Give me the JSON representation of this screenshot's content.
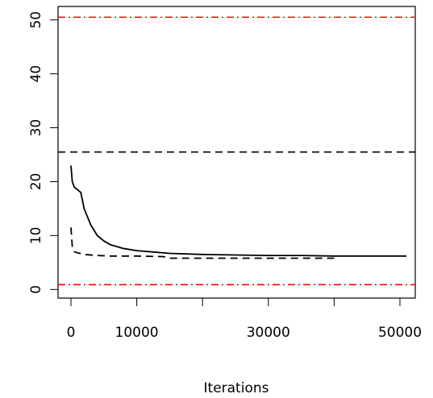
{
  "chart_data": {
    "type": "line",
    "x_label": "Iterations",
    "xlim": [
      -1960,
      52330
    ],
    "ylim": [
      -1.6,
      52.5
    ],
    "xticks": [
      0,
      10000,
      {
        "value": 20000,
        "label": null
      },
      30000,
      {
        "value": 40000,
        "label": null
      },
      50000
    ],
    "yticks": [
      0,
      10,
      20,
      30,
      40,
      50
    ],
    "hlines": [
      {
        "value": 50.5,
        "color": "#ff0000",
        "linestyle": "dashdot"
      },
      {
        "value": 25.5,
        "color": "#000000",
        "linestyle": "dashed"
      },
      {
        "value": 0.9,
        "color": "#ff0000",
        "linestyle": "dashdot"
      }
    ],
    "series": [
      {
        "color": "#000000",
        "linestyle": "solid",
        "x": [
          0,
          200,
          500,
          1000,
          1500,
          2000,
          3000,
          4000,
          5000,
          6000,
          8000,
          10000,
          12000,
          15000,
          20000,
          25000,
          30000,
          35000,
          40000,
          45000,
          51000
        ],
        "values": [
          23,
          20,
          19,
          18.5,
          18,
          15,
          12,
          10,
          9,
          8.3,
          7.6,
          7.2,
          7,
          6.7,
          6.5,
          6.4,
          6.3,
          6.3,
          6.2,
          6.2,
          6.2
        ]
      },
      {
        "color": "#000000",
        "linestyle": "dashed",
        "x": [
          0,
          200,
          500,
          1000,
          2000,
          4000,
          6000,
          10000,
          14000,
          15000,
          20000,
          30000,
          35000,
          40000
        ],
        "values": [
          11.5,
          8,
          7,
          6.8,
          6.5,
          6.3,
          6.2,
          6.2,
          6.1,
          5.8,
          5.8,
          5.8,
          5.8,
          5.8
        ]
      }
    ]
  }
}
